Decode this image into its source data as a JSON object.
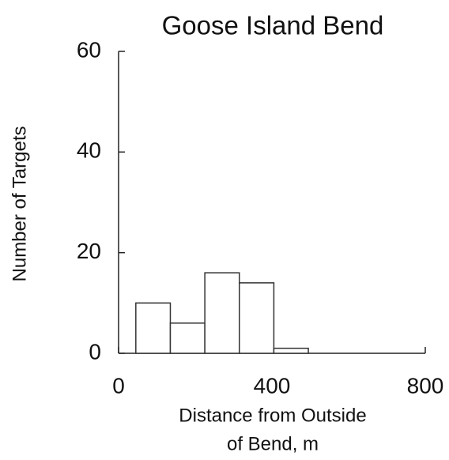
{
  "chart_data": {
    "type": "histogram",
    "title": "Goose Island Bend",
    "ylabel": "Number of Targets",
    "xlabel": [
      "Distance from Outside",
      "of Bend, m"
    ],
    "bins": [
      45,
      135,
      225,
      315,
      405,
      495
    ],
    "counts": [
      10,
      6,
      16,
      14,
      1
    ],
    "xlim": [
      0,
      800
    ],
    "xticks": [
      0,
      400,
      800
    ],
    "ylim": [
      0,
      60
    ],
    "yticks": [
      0,
      20,
      40,
      60
    ]
  }
}
